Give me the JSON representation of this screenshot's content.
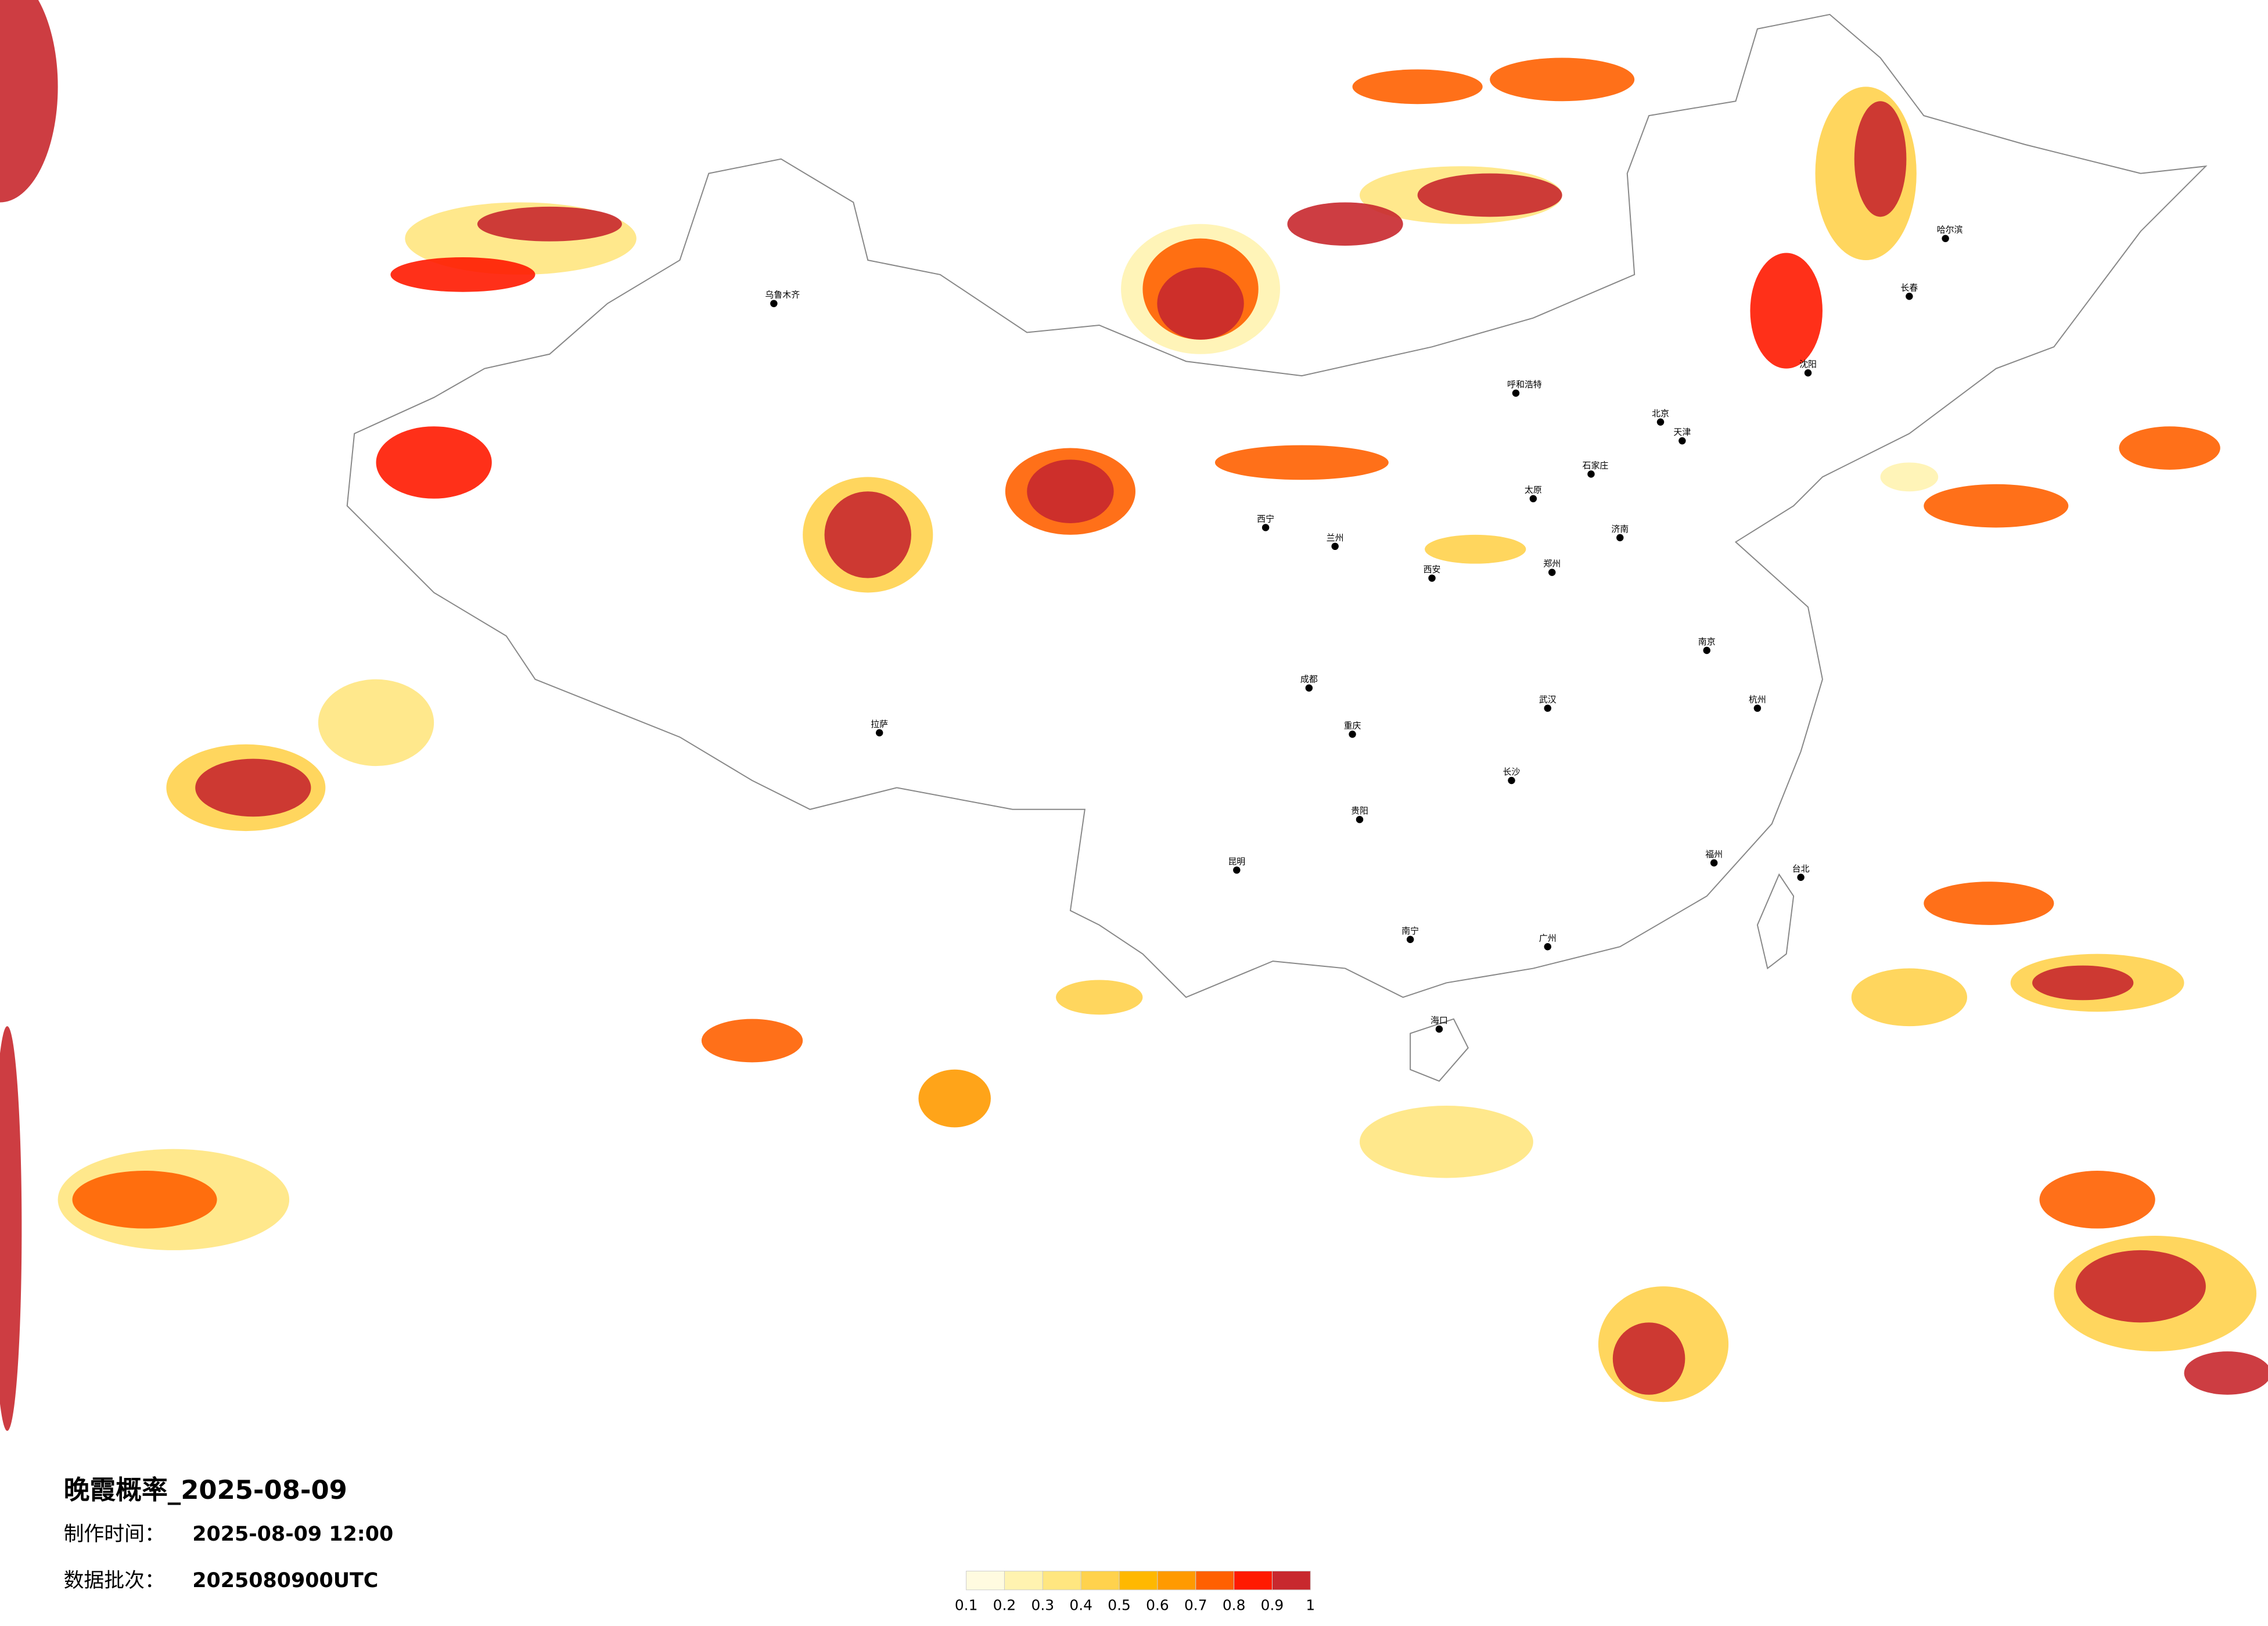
{
  "header": {
    "title": "晚霞概率_2025-08-09",
    "made_label": "制作时间：",
    "made_time": "2025-08-09 12:00",
    "batch_label": "数据批次：",
    "batch": "2025080900UTC"
  },
  "legend": {
    "ticks": [
      0.1,
      0.2,
      0.3,
      0.4,
      0.5,
      0.6,
      0.7,
      0.8,
      0.9,
      1
    ],
    "colors": [
      "#fffbe0",
      "#fff3b0",
      "#ffe680",
      "#ffd24d",
      "#ffb800",
      "#ff9a00",
      "#ff6000",
      "#ff1a00",
      "#c8282e"
    ]
  },
  "cities": [
    "北京",
    "天津",
    "石家庄",
    "太原",
    "郑州",
    "西安",
    "兰州",
    "成都",
    "重庆",
    "昆明",
    "贵阳",
    "南宁",
    "广州",
    "长沙",
    "武汉",
    "南京",
    "杭州",
    "福州",
    "哈尔滨",
    "长春",
    "沈阳",
    "乌鲁木齐",
    "拉萨",
    "西宁",
    "呼和浩特",
    "海口",
    "台北",
    "济南"
  ]
}
